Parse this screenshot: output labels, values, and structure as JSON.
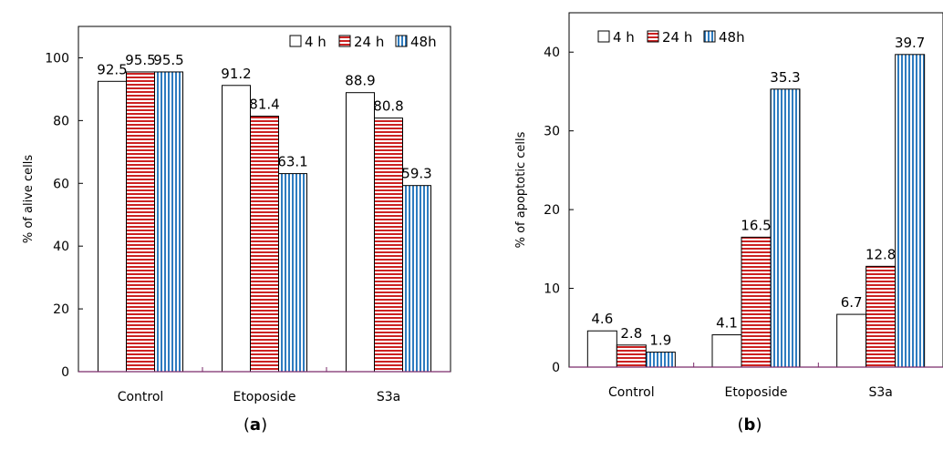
{
  "colors": {
    "h4": "#ffffff",
    "h24_stripe": "#cc2222",
    "h48_stripe": "#2e7cc0",
    "axis": "#000000",
    "baseline": "#7a2a6a"
  },
  "chart_data": [
    {
      "type": "bar",
      "panel_label": "a",
      "categories": [
        "Control",
        "Etoposide",
        "S3a"
      ],
      "series": [
        {
          "name": "4 h",
          "values": [
            92.5,
            91.2,
            88.9
          ],
          "labels": [
            "92.5",
            "91.2",
            "88.9"
          ]
        },
        {
          "name": "24 h",
          "values": [
            95.5,
            81.4,
            80.8
          ],
          "labels": [
            "95.5",
            "81.4",
            "80.8"
          ]
        },
        {
          "name": "48h",
          "values": [
            95.5,
            63.1,
            59.3
          ],
          "labels": [
            "95.5",
            "63.1",
            "59.3"
          ]
        }
      ],
      "ylabel": "% of alive cells",
      "xlabel": "",
      "ylim": [
        0,
        110
      ],
      "yticks": [
        "0",
        "20",
        "40",
        "60",
        "80",
        "100"
      ],
      "legend_position": "top-right",
      "grid": false
    },
    {
      "type": "bar",
      "panel_label": "b",
      "categories": [
        "Control",
        "Etoposide",
        "S3a"
      ],
      "series": [
        {
          "name": "4 h",
          "values": [
            4.6,
            4.1,
            6.7
          ],
          "labels": [
            "4.6",
            "4.1",
            "6.7"
          ]
        },
        {
          "name": "24 h",
          "values": [
            2.8,
            16.5,
            12.8
          ],
          "labels": [
            "2.8",
            "16.5",
            "12.8"
          ]
        },
        {
          "name": "48h",
          "values": [
            1.9,
            35.3,
            39.7
          ],
          "labels": [
            "1.9",
            "35.3",
            "39.7"
          ]
        }
      ],
      "ylabel": "% of apoptotic cells",
      "xlabel": "",
      "ylim": [
        0,
        45
      ],
      "yticks": [
        "0",
        "10",
        "20",
        "30",
        "40"
      ],
      "legend_position": "top-left",
      "grid": false
    }
  ]
}
